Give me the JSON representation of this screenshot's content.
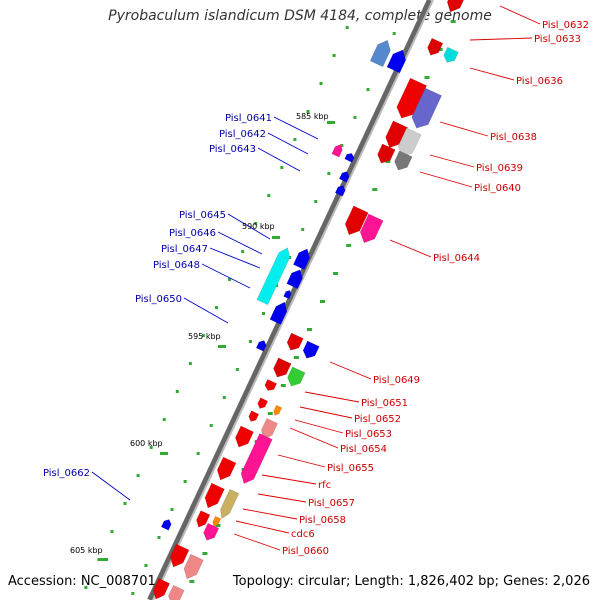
{
  "title": "Pyrobaculum islandicum DSM 4184, complete genome",
  "accession": "Accession: NC_008701",
  "topology": "Topology: circular; Length: 1,826,402 bp; Genes: 2,026",
  "scale": [
    "585 kbp",
    "590 kbp",
    "595 kbp",
    "600 kbp",
    "605 kbp"
  ],
  "colors": {
    "forward_label": "#cc0000",
    "reverse_label": "#0000aa",
    "backbone": "#555555",
    "tick": "#33aa33",
    "leader": "#dd0000",
    "leader_rev": "#0000cc"
  },
  "forward_genes": [
    {
      "label": "Pisl_0632"
    },
    {
      "label": "Pisl_0633"
    },
    {
      "label": "Pisl_0636"
    },
    {
      "label": "Pisl_0638"
    },
    {
      "label": "Pisl_0639"
    },
    {
      "label": "Pisl_0640"
    },
    {
      "label": "Pisl_0644"
    },
    {
      "label": "Pisl_0649"
    },
    {
      "label": "Pisl_0651"
    },
    {
      "label": "Pisl_0652"
    },
    {
      "label": "Pisl_0653"
    },
    {
      "label": "Pisl_0654"
    },
    {
      "label": "Pisl_0655"
    },
    {
      "label": "rfc"
    },
    {
      "label": "Pisl_0657"
    },
    {
      "label": "Pisl_0658"
    },
    {
      "label": "cdc6"
    },
    {
      "label": "Pisl_0660"
    }
  ],
  "reverse_genes": [
    {
      "label": "Pisl_0641"
    },
    {
      "label": "Pisl_0642"
    },
    {
      "label": "Pisl_0643"
    },
    {
      "label": "Pisl_0645"
    },
    {
      "label": "Pisl_0646"
    },
    {
      "label": "Pisl_0647"
    },
    {
      "label": "Pisl_0648"
    },
    {
      "label": "Pisl_0650"
    },
    {
      "label": "Pisl_0662"
    }
  ]
}
